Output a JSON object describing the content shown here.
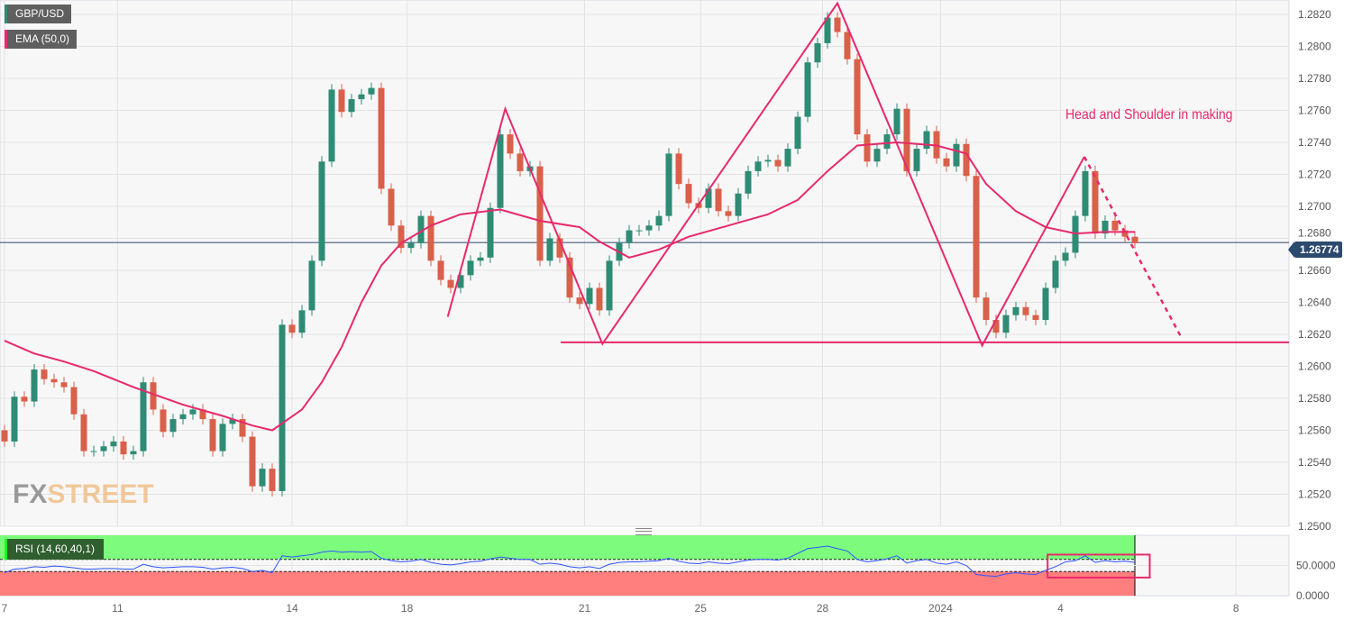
{
  "legend": {
    "symbol": "GBP/USD",
    "ema": "EMA (50,0)",
    "rsi": "RSI (14,60,40,1)"
  },
  "watermark": {
    "part1": "FX",
    "part2": "STREET"
  },
  "colors": {
    "up": "#2e8b74",
    "down": "#d9604a",
    "ema": "#e8296b",
    "pattern": "#e8296b",
    "price_line": "#2c4a6e",
    "rsi_line": "#2f55ff",
    "rsi_overbought": "#7dfb7d",
    "rsi_oversold": "#ff7f7f"
  },
  "current_price": "1.26774",
  "annotation": "Head and Shoulder in making",
  "chart_data": [
    {
      "type": "candlestick",
      "title": "GBP/USD",
      "ylim": [
        1.25,
        1.2829
      ],
      "grid": true,
      "y_ticks": [
        "1.2500",
        "1.2520",
        "1.2540",
        "1.2560",
        "1.2580",
        "1.2600",
        "1.2620",
        "1.2640",
        "1.2660",
        "1.2680",
        "1.2700",
        "1.2720",
        "1.2740",
        "1.2760",
        "1.2780",
        "1.2800",
        "1.2820"
      ],
      "x_ticks": [
        {
          "label": "7",
          "index": 0
        },
        {
          "label": "11",
          "index": 11.4
        },
        {
          "label": "14",
          "index": 29
        },
        {
          "label": "18",
          "index": 40.6
        },
        {
          "label": "21",
          "index": 58.5
        },
        {
          "label": "25",
          "index": 70.2
        },
        {
          "label": "28",
          "index": 82.5
        },
        {
          "label": "2024",
          "index": 94.4
        },
        {
          "label": "4",
          "index": 106.5
        },
        {
          "label": "8",
          "index": 124.2
        }
      ],
      "first_open": 1.256,
      "close": [
        1.2553,
        1.2581,
        1.2578,
        1.2598,
        1.2592,
        1.259,
        1.2587,
        1.257,
        1.2547,
        1.2547,
        1.255,
        1.2553,
        1.2545,
        1.2547,
        1.259,
        1.2573,
        1.2559,
        1.2567,
        1.257,
        1.2573,
        1.2567,
        1.2547,
        1.2564,
        1.2567,
        1.2556,
        1.2525,
        1.2536,
        1.2522,
        1.2626,
        1.2621,
        1.2635,
        1.2666,
        1.2728,
        1.2773,
        1.2759,
        1.2767,
        1.277,
        1.2774,
        1.2711,
        1.2688,
        1.2674,
        1.2677,
        1.2694,
        1.2666,
        1.2654,
        1.2649,
        1.2657,
        1.2666,
        1.2668,
        1.2699,
        1.2745,
        1.2733,
        1.2722,
        1.2725,
        1.2666,
        1.268,
        1.2668,
        1.2643,
        1.2639,
        1.2649,
        1.2635,
        1.2666,
        1.2677,
        1.2685,
        1.2685,
        1.2688,
        1.2694,
        1.2733,
        1.2714,
        1.2702,
        1.2699,
        1.2711,
        1.2697,
        1.2694,
        1.2708,
        1.2722,
        1.2728,
        1.2729,
        1.2725,
        1.2736,
        1.2756,
        1.279,
        1.2802,
        1.2818,
        1.2809,
        1.2792,
        1.2745,
        1.2728,
        1.2736,
        1.2745,
        1.2761,
        1.2722,
        1.2736,
        1.2747,
        1.273,
        1.2725,
        1.2739,
        1.2719,
        1.2643,
        1.2629,
        1.2621,
        1.2632,
        1.2637,
        1.2632,
        1.2629,
        1.2649,
        1.2666,
        1.2671,
        1.2694,
        1.2722,
        1.2683,
        1.2691,
        1.2685,
        1.2681,
        1.2677
      ],
      "ema_50": [
        [
          0,
          1.2616
        ],
        [
          3,
          1.2608
        ],
        [
          6,
          1.2603
        ],
        [
          9,
          1.2597
        ],
        [
          13,
          1.2587
        ],
        [
          18,
          1.2576
        ],
        [
          22,
          1.2569
        ],
        [
          25,
          1.2563
        ],
        [
          27,
          1.256
        ],
        [
          30,
          1.2573
        ],
        [
          32,
          1.259
        ],
        [
          34,
          1.2612
        ],
        [
          36,
          1.264
        ],
        [
          38,
          1.2663
        ],
        [
          40,
          1.2677
        ],
        [
          43,
          1.2688
        ],
        [
          46,
          1.2695
        ],
        [
          50,
          1.2698
        ],
        [
          54,
          1.2691
        ],
        [
          58,
          1.2687
        ],
        [
          60,
          1.2678
        ],
        [
          63,
          1.2668
        ],
        [
          66,
          1.2673
        ],
        [
          69,
          1.2681
        ],
        [
          73,
          1.2688
        ],
        [
          77,
          1.2695
        ],
        [
          80,
          1.2704
        ],
        [
          83,
          1.2722
        ],
        [
          86,
          1.2738
        ],
        [
          90,
          1.274
        ],
        [
          94,
          1.2738
        ],
        [
          97,
          1.2733
        ],
        [
          99,
          1.2714
        ],
        [
          102,
          1.2697
        ],
        [
          105,
          1.2687
        ],
        [
          108,
          1.2683
        ],
        [
          111,
          1.2684
        ],
        [
          114,
          1.2684
        ]
      ],
      "pattern_lines": [
        [
          44.7,
          1.2631
        ],
        [
          50.5,
          1.2761
        ],
        [
          60.3,
          1.2614
        ],
        [
          84,
          1.2827
        ],
        [
          98.6,
          1.2613
        ],
        [
          108.9,
          1.2731
        ]
      ],
      "projection": [
        [
          108.9,
          1.2731
        ],
        [
          118.6,
          1.2619
        ]
      ],
      "neckline": {
        "price": 1.2615,
        "from_index": 56.1
      }
    },
    {
      "type": "line",
      "title": "RSI (14,60,40,1)",
      "ylim": [
        0,
        100
      ],
      "y_ticks": [
        "50.0000",
        "0.0000"
      ],
      "bands": {
        "overbought": 60,
        "oversold": 40
      },
      "values": [
        38,
        44,
        45,
        48,
        47,
        49,
        48,
        46,
        44,
        44,
        45,
        45,
        44,
        44,
        52,
        48,
        46,
        47,
        48,
        48,
        47,
        44,
        46,
        47,
        45,
        40,
        42,
        38,
        66,
        64,
        66,
        68,
        72,
        74,
        72,
        73,
        72,
        73,
        62,
        58,
        56,
        57,
        60,
        55,
        52,
        51,
        53,
        56,
        57,
        61,
        64,
        62,
        60,
        60,
        52,
        54,
        52,
        48,
        46,
        48,
        45,
        52,
        55,
        56,
        56,
        57,
        58,
        62,
        57,
        54,
        53,
        56,
        54,
        53,
        56,
        59,
        60,
        60,
        59,
        62,
        70,
        78,
        80,
        82,
        78,
        74,
        60,
        56,
        58,
        61,
        66,
        54,
        58,
        60,
        54,
        52,
        56,
        50,
        35,
        33,
        32,
        36,
        38,
        36,
        35,
        42,
        48,
        56,
        58,
        66,
        55,
        58,
        56,
        57,
        55
      ],
      "highlight_range": {
        "from_index": 105.2,
        "to_index": 115.5,
        "from_value": 30,
        "to_value": 68
      }
    }
  ]
}
